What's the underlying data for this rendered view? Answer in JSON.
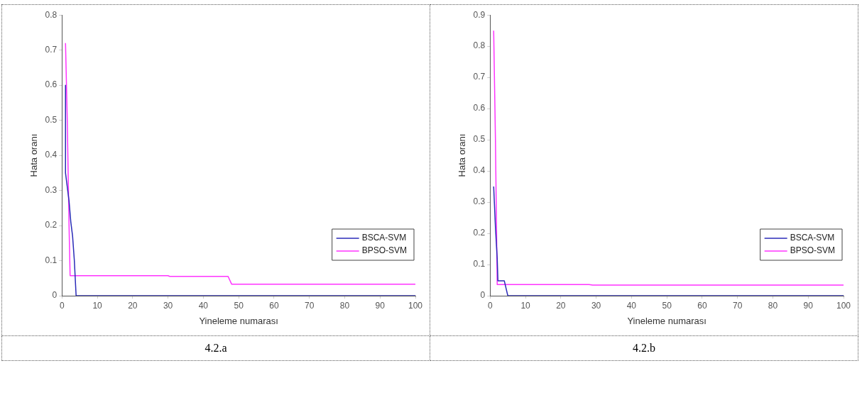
{
  "chart_data": [
    {
      "type": "line",
      "xlabel": "Yineleme numarası",
      "ylabel": "Hata oranı",
      "xlim": [
        0,
        100
      ],
      "xticks": [
        0,
        10,
        20,
        30,
        40,
        50,
        60,
        70,
        80,
        90,
        100
      ],
      "ylim": [
        0,
        0.8
      ],
      "yticks": [
        0,
        0.1,
        0.2,
        0.3,
        0.4,
        0.5,
        0.6,
        0.7,
        0.8
      ],
      "grid": false,
      "legend": "bottom right",
      "marker": "none",
      "line_style": "solid",
      "annotations": [
        "4.2.a"
      ],
      "series": [
        {
          "name": "BSCA-SVM",
          "color": "#2a2ab8",
          "x": [
            1,
            1,
            2,
            2.5,
            3,
            3.5,
            4,
            100
          ],
          "values": [
            0.6,
            0.35,
            0.27,
            0.21,
            0.17,
            0.1,
            0,
            0
          ]
        },
        {
          "name": "BPSO-SVM",
          "color": "#ff33ff",
          "x": [
            1,
            1.5,
            2,
            2.3,
            30,
            30.5,
            47,
            48,
            100
          ],
          "values": [
            0.72,
            0.5,
            0.2,
            0.057,
            0.057,
            0.055,
            0.055,
            0.033,
            0.033
          ]
        }
      ]
    },
    {
      "type": "line",
      "xlabel": "Yineleme numarası",
      "ylabel": "Hata oranı",
      "xlim": [
        0,
        100
      ],
      "xticks": [
        0,
        10,
        20,
        30,
        40,
        50,
        60,
        70,
        80,
        90,
        100
      ],
      "ylim": [
        0,
        0.9
      ],
      "yticks": [
        0,
        0.1,
        0.2,
        0.3,
        0.4,
        0.5,
        0.6,
        0.7,
        0.8,
        0.9
      ],
      "grid": false,
      "legend": "bottom right",
      "marker": "none",
      "line_style": "solid",
      "annotations": [
        "4.2.b"
      ],
      "series": [
        {
          "name": "BSCA-SVM",
          "color": "#2a2ab8",
          "x": [
            1,
            1.5,
            2,
            2.2,
            4,
            5,
            100
          ],
          "values": [
            0.35,
            0.22,
            0.12,
            0.048,
            0.048,
            0,
            0
          ]
        },
        {
          "name": "BPSO-SVM",
          "color": "#ff33ff",
          "x": [
            1,
            1.5,
            2,
            28,
            29,
            100
          ],
          "values": [
            0.85,
            0.5,
            0.036,
            0.036,
            0.034,
            0.034
          ]
        }
      ]
    }
  ]
}
